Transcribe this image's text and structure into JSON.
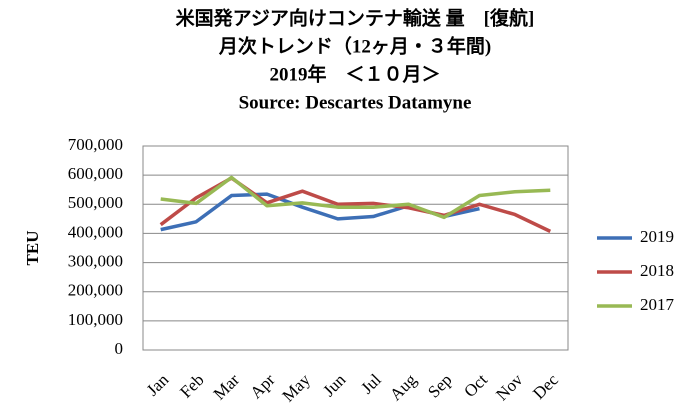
{
  "chart_data": {
    "type": "line",
    "title": "米国発アジア向けコンテナ輸送 量　[復航]",
    "subtitle": "月次トレンド（12ヶ月・３年間)",
    "period": "2019年　＜１０月＞",
    "source": "Source: Descartes Datamyne",
    "y_label": "TEU",
    "categories": [
      "Jan",
      "Feb",
      "Mar",
      "Apr",
      "May",
      "Jun",
      "Jul",
      "Aug",
      "Sep",
      "Oct",
      "Nov",
      "Dec"
    ],
    "series": [
      {
        "name": "2019",
        "color": "#3d6fb6",
        "values": [
          413000,
          440000,
          530000,
          535000,
          490000,
          450000,
          458000,
          495000,
          458000,
          485000,
          null,
          null
        ]
      },
      {
        "name": "2018",
        "color": "#be4b48",
        "values": [
          430000,
          522000,
          590000,
          505000,
          545000,
          500000,
          503000,
          488000,
          462000,
          500000,
          465000,
          407000
        ]
      },
      {
        "name": "2017",
        "color": "#98b954",
        "values": [
          518000,
          503000,
          592000,
          495000,
          505000,
          490000,
          490000,
          500000,
          455000,
          530000,
          543000,
          548000
        ]
      }
    ],
    "ylim": [
      0,
      700000
    ],
    "yticks": [
      0,
      {
        "value": 100000,
        "label": "100,000"
      },
      {
        "value": 200000,
        "label": "200,000"
      },
      {
        "value": 300000,
        "label": "300,000"
      },
      {
        "value": 400000,
        "label": "400,000"
      },
      {
        "value": 500000,
        "label": "500,000"
      },
      {
        "value": 600000,
        "label": "600,000"
      },
      {
        "value": 700000,
        "label": "700,000"
      }
    ],
    "grid": true,
    "legend": "right"
  }
}
